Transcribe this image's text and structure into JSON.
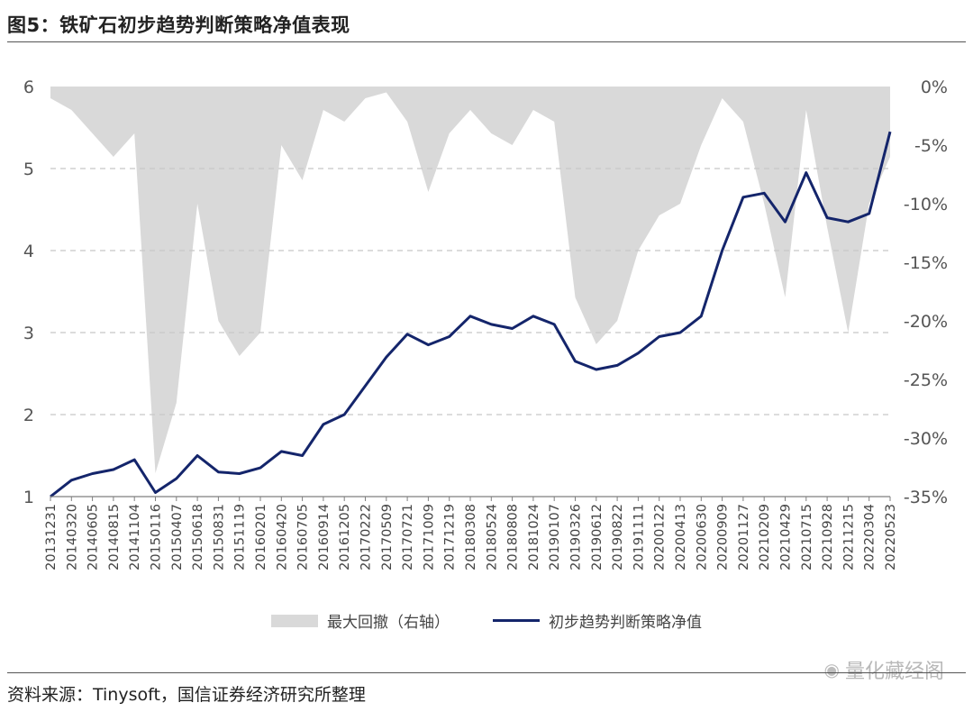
{
  "title": "图5：铁矿石初步趋势判断策略净值表现",
  "source": "资料来源：Tinysoft，国信证券经济研究所整理",
  "watermark": "量化藏经阁",
  "colors": {
    "line": "#14256b",
    "area": "#d9d9d9",
    "grid": "#c8c8c8",
    "axis": "#7f7f7f"
  },
  "chart_data": {
    "type": "line",
    "title": "",
    "xlabel": "",
    "ylabel": "",
    "y_left": {
      "range": [
        1,
        6
      ],
      "ticks": [
        "1",
        "2",
        "3",
        "4",
        "5",
        "6"
      ]
    },
    "y_right": {
      "range": [
        -35,
        0
      ],
      "ticks": [
        "0%",
        "-5%",
        "-10%",
        "-15%",
        "-20%",
        "-25%",
        "-30%",
        "-35%"
      ]
    },
    "categories": [
      "20131231",
      "20140320",
      "20140605",
      "20140815",
      "20141104",
      "20150116",
      "20150407",
      "20150618",
      "20150831",
      "20151119",
      "20160201",
      "20160420",
      "20160705",
      "20160914",
      "20161205",
      "20170222",
      "20170509",
      "20170721",
      "20171009",
      "20171219",
      "20180308",
      "20180524",
      "20180808",
      "20181024",
      "20190107",
      "20190326",
      "20190612",
      "20190822",
      "20191111",
      "20200122",
      "20200413",
      "20200630",
      "20200909",
      "20201127",
      "20210209",
      "20210429",
      "20210715",
      "20210928",
      "20211215",
      "20220304",
      "20220523"
    ],
    "legend": [
      "最大回撤（右轴）",
      "初步趋势判断策略净值"
    ],
    "series": [
      {
        "name": "初步趋势判断策略净值",
        "axis": "left",
        "values": [
          1.0,
          1.2,
          1.28,
          1.33,
          1.45,
          1.05,
          1.22,
          1.5,
          1.3,
          1.28,
          1.35,
          1.55,
          1.5,
          1.88,
          2.0,
          2.35,
          2.7,
          2.98,
          2.85,
          2.95,
          3.2,
          3.1,
          3.05,
          3.2,
          3.1,
          2.65,
          2.55,
          2.6,
          2.75,
          2.95,
          3.0,
          3.2,
          4.0,
          4.65,
          4.7,
          4.35,
          4.95,
          4.4,
          4.35,
          4.45,
          5.45
        ]
      },
      {
        "name": "最大回撤（右轴）",
        "axis": "right",
        "values": [
          -1,
          -2,
          -4,
          -6,
          -4,
          -33,
          -27,
          -10,
          -20,
          -23,
          -21,
          -5,
          -8,
          -2,
          -3,
          -1,
          -0.5,
          -3,
          -9,
          -4,
          -2,
          -4,
          -5,
          -2,
          -3,
          -18,
          -22,
          -20,
          -14,
          -11,
          -10,
          -5,
          -1,
          -3,
          -10,
          -18,
          -2,
          -12,
          -21,
          -10,
          -6
        ]
      }
    ]
  }
}
